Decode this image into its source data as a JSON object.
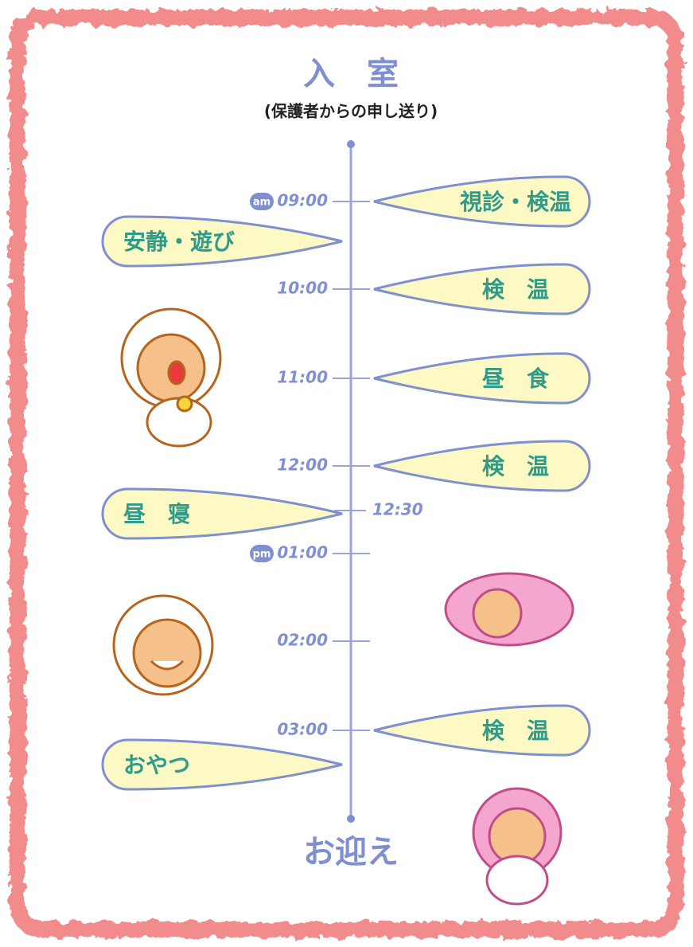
{
  "header": {
    "title": "入　室",
    "subtitle": "(保護者からの申し送り)"
  },
  "times": [
    {
      "label": "09:00",
      "badge": "am"
    },
    {
      "label": "10:00"
    },
    {
      "label": "11:00"
    },
    {
      "label": "12:00"
    },
    {
      "label": "12:30"
    },
    {
      "label": "01:00",
      "badge": "pm"
    },
    {
      "label": "02:00"
    },
    {
      "label": "03:00"
    }
  ],
  "right_items": [
    "視診・検温",
    "検　温",
    "昼　食",
    "検　温",
    "検　温"
  ],
  "left_items": [
    "安静・遊び",
    "昼　寝",
    "おやつ"
  ],
  "footer": "お迎え"
}
